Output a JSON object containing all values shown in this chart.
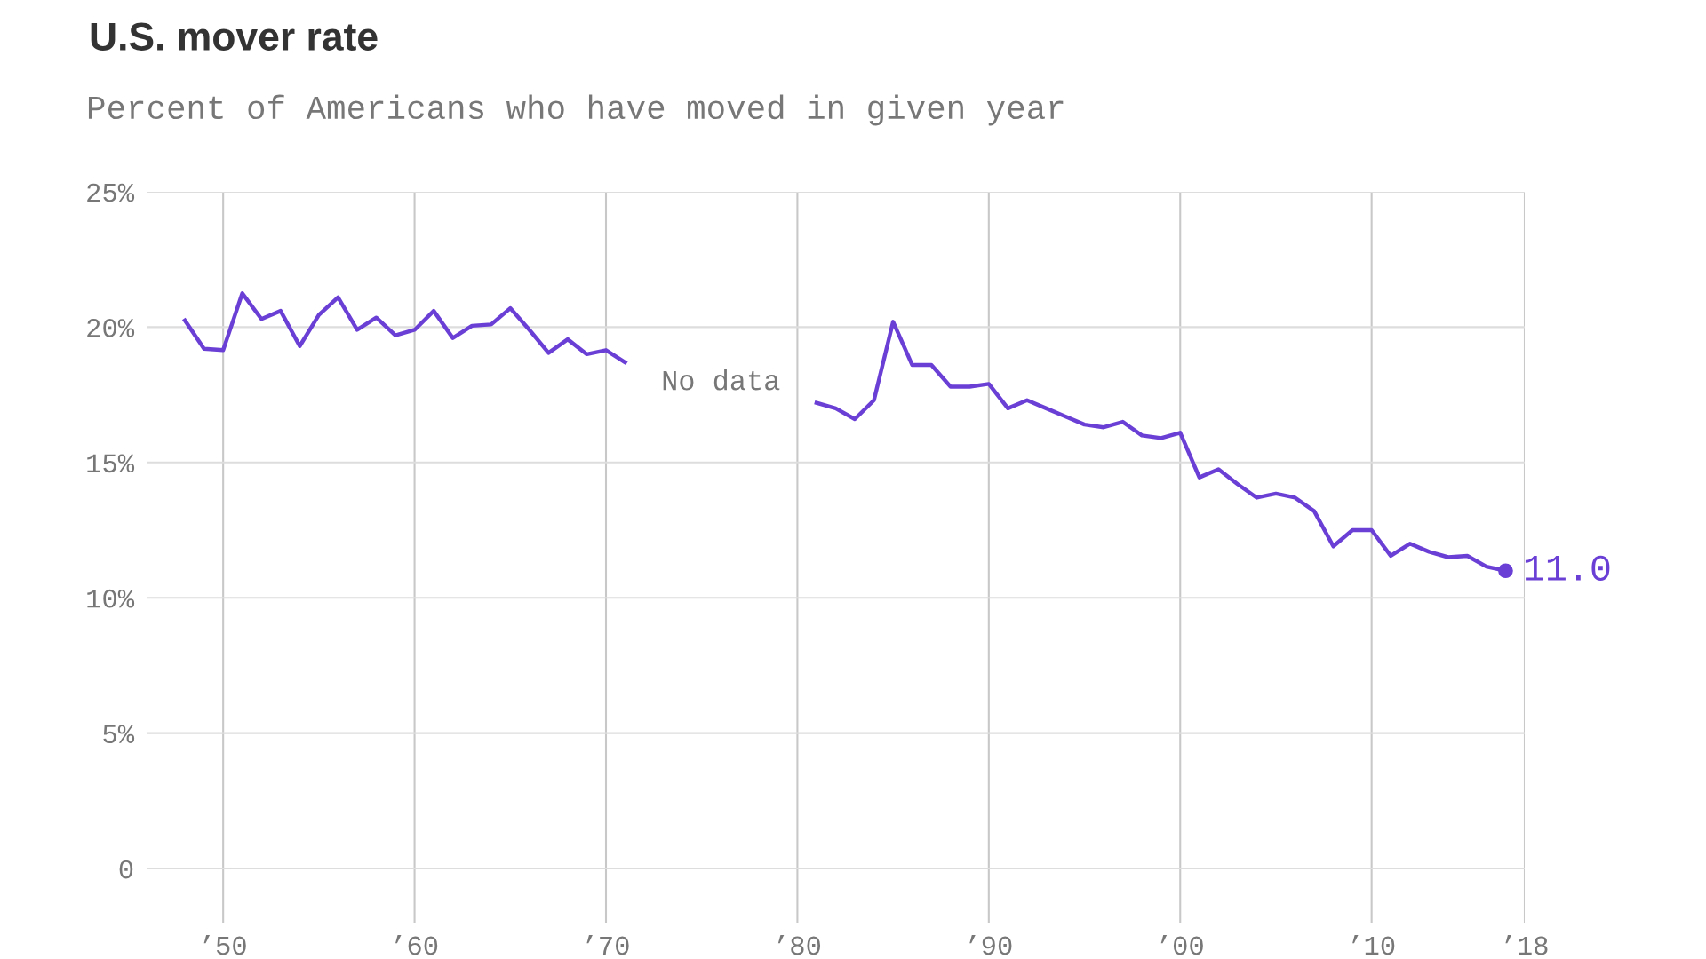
{
  "chart_data": {
    "type": "line",
    "title": "U.S. mover rate",
    "subtitle": "Percent of Americans who have moved in given year",
    "x": [
      1948,
      1949,
      1950,
      1951,
      1952,
      1953,
      1954,
      1955,
      1956,
      1957,
      1958,
      1959,
      1960,
      1961,
      1962,
      1963,
      1964,
      1965,
      1966,
      1967,
      1968,
      1969,
      1970,
      1971,
      1972,
      1973,
      1974,
      1975,
      1976,
      1977,
      1978,
      1979,
      1980,
      1981,
      1982,
      1983,
      1984,
      1985,
      1986,
      1987,
      1988,
      1989,
      1990,
      1991,
      1992,
      1993,
      1994,
      1995,
      1996,
      1997,
      1998,
      1999,
      2000,
      2001,
      2002,
      2003,
      2004,
      2005,
      2006,
      2007,
      2008,
      2009,
      2010,
      2011,
      2012,
      2013,
      2014,
      2015,
      2016,
      2017
    ],
    "series": [
      {
        "color": "#6a3fd6",
        "values": [
          20.25,
          19.2,
          19.15,
          21.25,
          20.3,
          20.6,
          19.3,
          20.45,
          21.1,
          19.9,
          20.35,
          19.7,
          19.9,
          20.6,
          19.6,
          20.05,
          20.1,
          20.7,
          19.9,
          19.05,
          19.55,
          19.0,
          19.15,
          18.7,
          null,
          null,
          null,
          null,
          null,
          null,
          null,
          null,
          null,
          17.2,
          17.0,
          16.6,
          17.3,
          20.2,
          18.6,
          18.6,
          17.8,
          17.8,
          17.9,
          17.0,
          17.3,
          17.0,
          16.7,
          16.4,
          16.3,
          16.5,
          16.0,
          15.9,
          16.1,
          14.45,
          14.75,
          14.2,
          13.7,
          13.85,
          13.7,
          13.2,
          11.9,
          12.5,
          12.5,
          11.55,
          12.0,
          11.7,
          11.5,
          11.55,
          11.15,
          11.0
        ]
      }
    ],
    "xlim": [
      1946,
      2018
    ],
    "xticks": [
      {
        "value": 1950,
        "label": "’50"
      },
      {
        "value": 1960,
        "label": "’60"
      },
      {
        "value": 1970,
        "label": "’70"
      },
      {
        "value": 1980,
        "label": "’80"
      },
      {
        "value": 1990,
        "label": "’90"
      },
      {
        "value": 2000,
        "label": "’00"
      },
      {
        "value": 2010,
        "label": "’10"
      },
      {
        "value": 2018,
        "label": "’18"
      }
    ],
    "ylim": [
      -2,
      25
    ],
    "yticks": [
      0,
      {
        "value": 5,
        "label": "5%"
      },
      {
        "value": 10,
        "label": "10%"
      },
      {
        "value": 15,
        "label": "15%"
      },
      {
        "value": 20,
        "label": "20%"
      },
      {
        "value": 25,
        "label": "25%"
      }
    ],
    "grid": true,
    "marker": "none",
    "line_style": "solid",
    "annotations": [
      "No data",
      {
        "text": "11.0",
        "x": 2017,
        "y": 11.0
      }
    ]
  }
}
